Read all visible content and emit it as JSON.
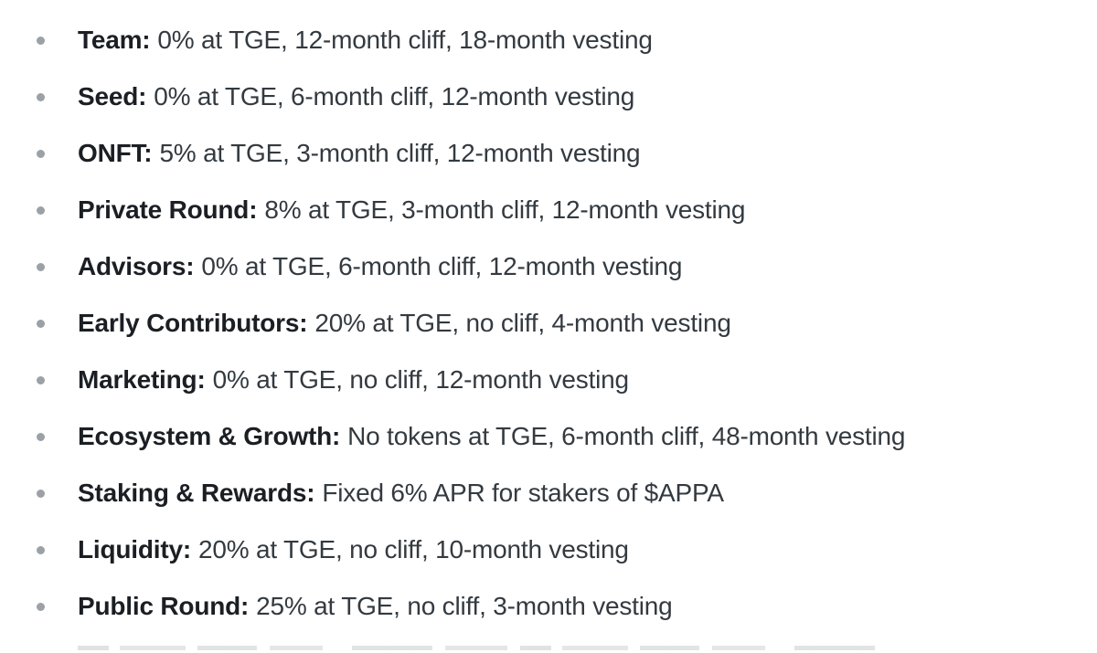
{
  "page": {
    "background": "#ffffff"
  },
  "list": {
    "bullet_color": "#9ba1a6",
    "label_color": "#1b1f24",
    "text_color": "#333a40",
    "items": [
      {
        "label": "Team:",
        "text": "0% at TGE, 12-month cliff, 18-month vesting"
      },
      {
        "label": "Seed:",
        "text": "0% at TGE, 6-month cliff, 12-month vesting"
      },
      {
        "label": "ONFT:",
        "text": "5% at TGE, 3-month cliff, 12-month vesting"
      },
      {
        "label": "Private Round:",
        "text": "8% at TGE, 3-month cliff, 12-month vesting"
      },
      {
        "label": "Advisors:",
        "text": "0% at TGE, 6-month cliff, 12-month vesting"
      },
      {
        "label": "Early Contributors:",
        "text": "20% at TGE, no cliff, 4-month vesting"
      },
      {
        "label": "Marketing:",
        "text": "0% at TGE, no cliff, 12-month vesting"
      },
      {
        "label": "Ecosystem & Growth:",
        "text": "No tokens at TGE, 6-month cliff, 48-month vesting"
      },
      {
        "label": "Staking & Rewards:",
        "text": "Fixed 6% APR for stakers of $APPA"
      },
      {
        "label": "Liquidity:",
        "text": "20% at TGE, no cliff, 10-month vesting"
      },
      {
        "label": "Public Round:",
        "text": "25% at TGE, no cliff, 3-month vesting"
      }
    ]
  }
}
